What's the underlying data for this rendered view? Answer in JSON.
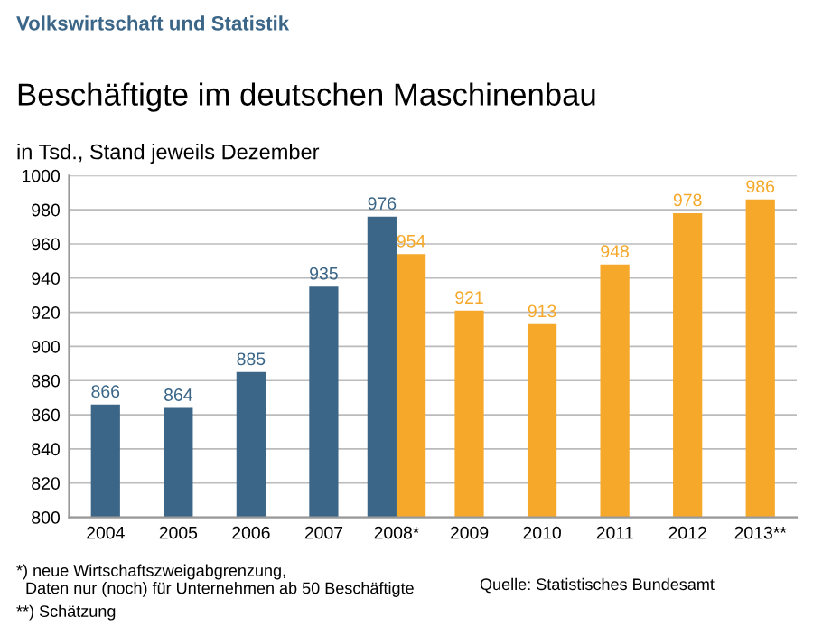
{
  "chart_data": {
    "type": "bar",
    "title": "Beschäftigte im deutschen Maschinenbau",
    "ylabel": "in Tsd., Stand jeweils Dezember",
    "categories": [
      "2004",
      "2005",
      "2006",
      "2007",
      "2008*",
      "2009",
      "2010",
      "2011",
      "2012",
      "2013**"
    ],
    "series": [
      {
        "color": "#3b6687",
        "values": [
          866,
          864,
          885,
          935,
          976,
          null,
          null,
          null,
          null,
          null
        ]
      },
      {
        "color": "#f5a82a",
        "values": [
          null,
          null,
          null,
          null,
          954,
          921,
          913,
          948,
          978,
          986
        ]
      }
    ],
    "ylim": [
      800,
      1000
    ],
    "yticks": [
      800,
      820,
      840,
      860,
      880,
      900,
      920,
      940,
      960,
      980,
      1000
    ],
    "grid": "y",
    "data_labels": true,
    "annotations": [
      "Volkswirtschaft und Statistik",
      "*) neue Wirtschaftszweigabgrenzung,\n  Daten nur (noch) für Unternehmen ab 50 Beschäftigte",
      "**) Schätzung",
      "Quelle: Statistisches Bundesamt"
    ]
  }
}
